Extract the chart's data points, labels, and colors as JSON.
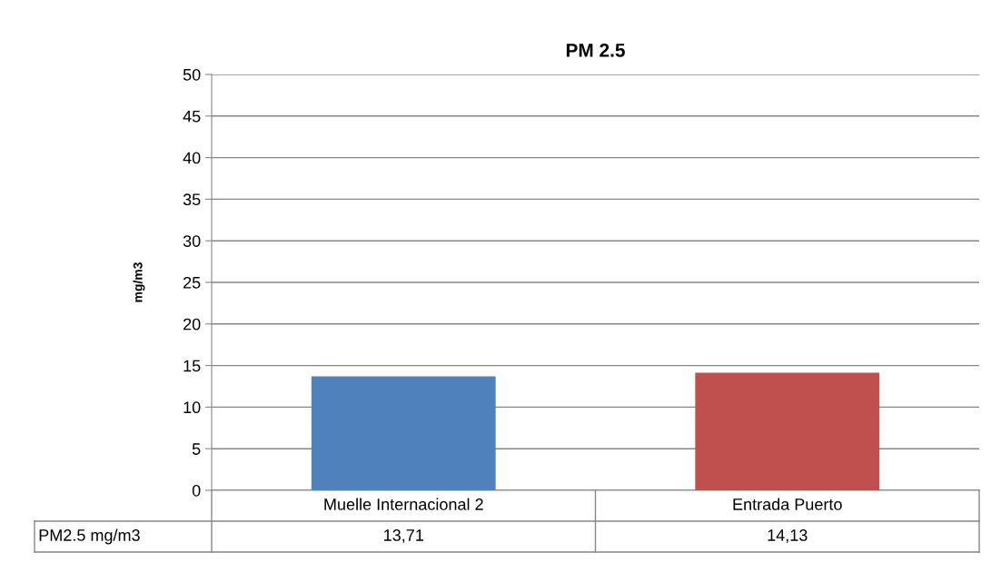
{
  "chart_data": {
    "type": "bar",
    "title": "PM 2.5",
    "ylabel": "mg/m3",
    "categories": [
      "Muelle Internacional 2",
      "Entrada Puerto"
    ],
    "series": [
      {
        "name": "PM2.5 mg/m3",
        "values": [
          13.71,
          14.13
        ],
        "colors": [
          "#4f81bd",
          "#c0504d"
        ],
        "value_labels": [
          "13,71",
          "14,13"
        ]
      }
    ],
    "ylim": [
      0,
      50
    ],
    "yticks": [
      0,
      5,
      10,
      15,
      20,
      25,
      30,
      35,
      40,
      45,
      50
    ],
    "grid": "y",
    "legend": false
  }
}
